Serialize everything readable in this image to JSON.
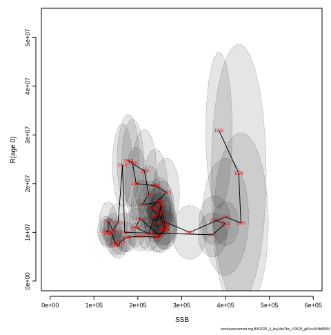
{
  "chart_data": {
    "type": "scatter",
    "xlabel": "SSB",
    "ylabel": "R(age 0)",
    "xlim": [
      -20000,
      620000
    ],
    "ylim": [
      -2000000,
      56000000
    ],
    "x_ticks": [
      0,
      100000,
      200000,
      300000,
      400000,
      500000,
      600000
    ],
    "x_tick_labels": [
      "0e+00",
      "1e+05",
      "2e+05",
      "3e+05",
      "4e+05",
      "5e+05",
      "6e+05"
    ],
    "y_ticks": [
      0,
      10000000,
      20000000,
      30000000,
      40000000,
      50000000
    ],
    "y_tick_labels": [
      "0e+00",
      "1e+07",
      "2e+07",
      "3e+07",
      "4e+07",
      "5e+07"
    ],
    "grid": false,
    "connected_path": true,
    "caption": "stockassessment.org,BW2026_4_keyVarObs_r19528_git1cc464b8086f",
    "points": [
      {
        "year": "1978",
        "ssb": 385000,
        "rec": 30900000,
        "ellipse": {
          "w": 60000,
          "h": 32000000
        }
      },
      {
        "year": "1979",
        "ssb": 430000,
        "rec": 22100000,
        "ellipse": {
          "w": 125000,
          "h": 53000000
        }
      },
      {
        "year": "1980",
        "ssb": 435000,
        "rec": 11900000,
        "ellipse": {
          "w": 125000,
          "h": 37000000
        }
      },
      {
        "year": "1981",
        "ssb": 400000,
        "rec": 13200000,
        "ellipse": {
          "w": 105000,
          "h": 24000000
        }
      },
      {
        "year": "1982",
        "ssb": 318000,
        "rec": 10000000,
        "ellipse": {
          "w": 80000,
          "h": 11000000
        }
      },
      {
        "year": "1983",
        "ssb": 258000,
        "rec": 12300000,
        "ellipse": {
          "w": 60000,
          "h": 10000000
        }
      },
      {
        "year": "1984",
        "ssb": 230000,
        "rec": 15000000,
        "ellipse": {
          "w": 55000,
          "h": 11000000
        }
      },
      {
        "year": "1985",
        "ssb": 265000,
        "rec": 18200000,
        "ellipse": {
          "w": 60000,
          "h": 14000000
        }
      },
      {
        "year": "1986",
        "ssb": 240000,
        "rec": 19600000,
        "ellipse": {
          "w": 55000,
          "h": 15000000
        }
      },
      {
        "year": "1987",
        "ssb": 196000,
        "rec": 20000000,
        "ellipse": {
          "w": 50000,
          "h": 15000000
        }
      },
      {
        "year": "1988",
        "ssb": 188000,
        "rec": 24200000,
        "ellipse": {
          "w": 50000,
          "h": 18000000
        }
      },
      {
        "year": "1989",
        "ssb": 178000,
        "rec": 24700000,
        "ellipse": {
          "w": 50000,
          "h": 19000000
        }
      },
      {
        "year": "1990",
        "ssb": 215000,
        "rec": 22600000,
        "ellipse": {
          "w": 55000,
          "h": 17000000
        }
      },
      {
        "year": "1991",
        "ssb": 225000,
        "rec": 17700000,
        "ellipse": {
          "w": 55000,
          "h": 12000000
        }
      },
      {
        "year": "1992",
        "ssb": 210000,
        "rec": 15700000,
        "ellipse": {
          "w": 50000,
          "h": 10000000
        }
      },
      {
        "year": "1993",
        "ssb": 250000,
        "rec": 16200000,
        "ellipse": {
          "w": 55000,
          "h": 10000000
        }
      },
      {
        "year": "1994",
        "ssb": 255000,
        "rec": 14000000,
        "ellipse": {
          "w": 55000,
          "h": 9000000
        }
      },
      {
        "year": "1995",
        "ssb": 262000,
        "rec": 11500000,
        "ellipse": {
          "w": 55000,
          "h": 8000000
        }
      },
      {
        "year": "1996",
        "ssb": 260000,
        "rec": 10600000,
        "ellipse": {
          "w": 55000,
          "h": 8000000
        }
      },
      {
        "year": "1997",
        "ssb": 250000,
        "rec": 9300000,
        "ellipse": {
          "w": 50000,
          "h": 7000000
        }
      },
      {
        "year": "1998",
        "ssb": 205000,
        "rec": 12800000,
        "ellipse": {
          "w": 50000,
          "h": 8000000
        }
      },
      {
        "year": "1999",
        "ssb": 195000,
        "rec": 11000000,
        "ellipse": {
          "w": 50000,
          "h": 8000000
        }
      },
      {
        "year": "2000",
        "ssb": 225000,
        "rec": 9700000,
        "ellipse": {
          "w": 50000,
          "h": 7000000
        }
      },
      {
        "year": "2001",
        "ssb": 238000,
        "rec": 13300000,
        "ellipse": {
          "w": 50000,
          "h": 9000000
        }
      },
      {
        "year": "2002",
        "ssb": 250000,
        "rec": 13600000,
        "ellipse": {
          "w": 55000,
          "h": 9000000
        }
      },
      {
        "year": "2003",
        "ssb": 240000,
        "rec": 12000000,
        "ellipse": {
          "w": 50000,
          "h": 8000000
        }
      },
      {
        "year": "2004",
        "ssb": 255000,
        "rec": 15500000,
        "ellipse": {
          "w": 55000,
          "h": 10000000
        }
      },
      {
        "year": "2005",
        "ssb": 248000,
        "rec": 14500000,
        "ellipse": {
          "w": 55000,
          "h": 10000000
        }
      },
      {
        "year": "2006",
        "ssb": 262000,
        "rec": 10500000,
        "ellipse": {
          "w": 55000,
          "h": 8000000
        }
      },
      {
        "year": "2007",
        "ssb": 245000,
        "rec": 9000000,
        "ellipse": {
          "w": 55000,
          "h": 6000000
        }
      },
      {
        "year": "2008",
        "ssb": 205000,
        "rec": 9200000,
        "ellipse": {
          "w": 50000,
          "h": 6000000
        }
      },
      {
        "year": "2009",
        "ssb": 175000,
        "rec": 9000000,
        "ellipse": {
          "w": 45000,
          "h": 6000000
        }
      },
      {
        "year": "2010",
        "ssb": 160000,
        "rec": 8000000,
        "ellipse": {
          "w": 45000,
          "h": 5000000
        }
      },
      {
        "year": "2011",
        "ssb": 155000,
        "rec": 7200000,
        "ellipse": {
          "w": 40000,
          "h": 5000000
        }
      },
      {
        "year": "2012",
        "ssb": 148000,
        "rec": 7800000,
        "ellipse": {
          "w": 40000,
          "h": 5000000
        }
      },
      {
        "year": "2013",
        "ssb": 140000,
        "rec": 10000000,
        "ellipse": {
          "w": 40000,
          "h": 6000000
        }
      },
      {
        "year": "2014",
        "ssb": 128000,
        "rec": 10300000,
        "ellipse": {
          "w": 40000,
          "h": 6000000
        }
      },
      {
        "year": "2015",
        "ssb": 132000,
        "rec": 9800000,
        "ellipse": {
          "w": 40000,
          "h": 6000000
        }
      },
      {
        "year": "2016",
        "ssb": 132000,
        "rec": 12300000,
        "ellipse": {
          "w": 40000,
          "h": 8000000
        }
      },
      {
        "year": "2017",
        "ssb": 143000,
        "rec": 10400000,
        "ellipse": {
          "w": 40000,
          "h": 7000000
        }
      },
      {
        "year": "2018",
        "ssb": 155000,
        "rec": 12000000,
        "ellipse": {
          "w": 45000,
          "h": 8000000
        }
      },
      {
        "year": "2019",
        "ssb": 165000,
        "rec": 23800000,
        "ellipse": {
          "w": 45000,
          "h": 17000000
        }
      },
      {
        "year": "2020",
        "ssb": 170000,
        "rec": 10000000,
        "ellipse": {
          "w": 50000,
          "h": 8000000
        }
      },
      {
        "year": "2021",
        "ssb": 370000,
        "rec": 9500000,
        "ellipse": {
          "w": 65000,
          "h": 9000000
        }
      },
      {
        "year": "2022",
        "ssb": 400000,
        "rec": 11800000,
        "ellipse": {
          "w": 60000,
          "h": 9000000
        }
      },
      {
        "year": "2023",
        "ssb": 375000,
        "rec": 12500000,
        "ellipse": {
          "w": 70000,
          "h": 10000000
        }
      }
    ]
  }
}
